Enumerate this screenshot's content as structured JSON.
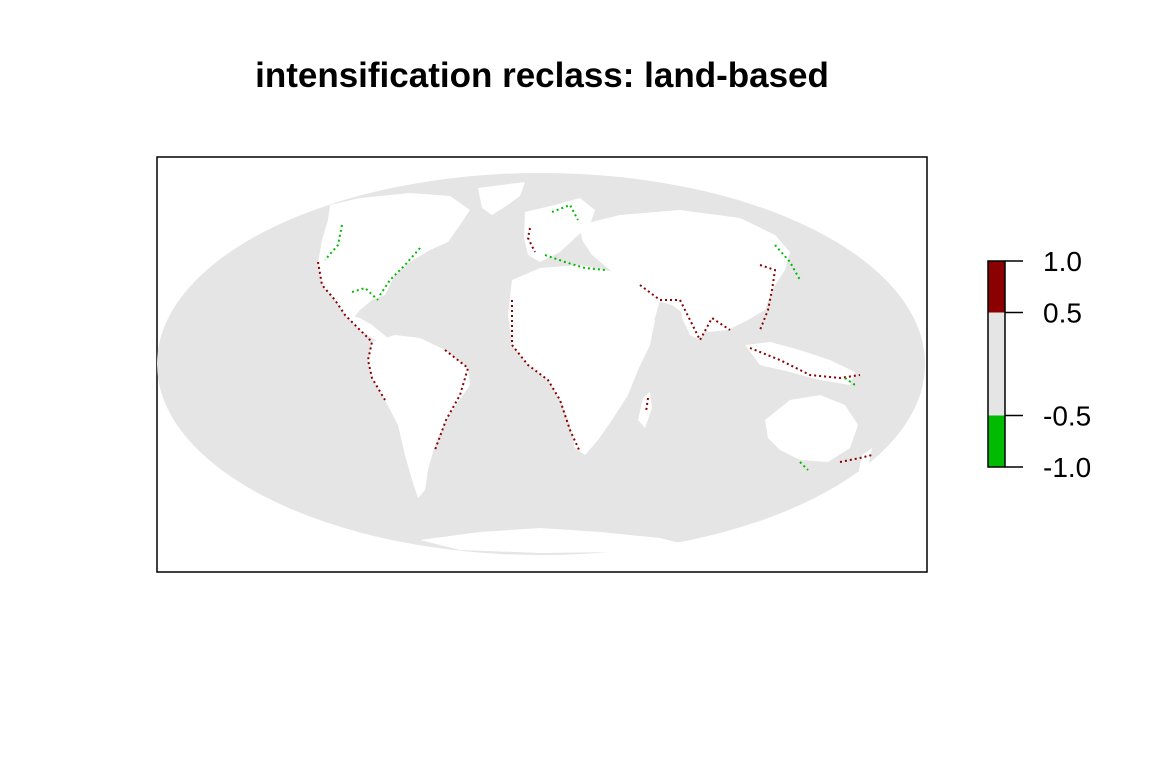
{
  "title": "intensification reclass: land-based",
  "colors": {
    "ocean": "#e5e5e5",
    "land": "#ffffff",
    "increase": "#8b0000",
    "neutral": "#e5e5e5",
    "decrease": "#00bb00",
    "frame": "#000000"
  },
  "legend": {
    "range": [
      -1.0,
      1.0
    ],
    "bins": [
      {
        "from": 0.5,
        "to": 1.0,
        "color": "#8b0000"
      },
      {
        "from": -0.5,
        "to": 0.5,
        "color": "#e5e5e5"
      },
      {
        "from": -1.0,
        "to": -0.5,
        "color": "#00bb00"
      }
    ],
    "ticks": [
      {
        "value": 1.0,
        "label": "1.0"
      },
      {
        "value": 0.5,
        "label": "0.5"
      },
      {
        "value": -0.5,
        "label": "-0.5"
      },
      {
        "value": -1.0,
        "label": "-1.0"
      }
    ]
  },
  "chart_data": {
    "type": "heatmap",
    "projection": "Mollweide (world)",
    "title": "intensification reclass: land-based",
    "value_classes": [
      -1,
      0,
      1
    ],
    "legend_placement": "right",
    "notes_visible": "mostly neutral; red (1) and green (-1) cells along coastlines"
  }
}
